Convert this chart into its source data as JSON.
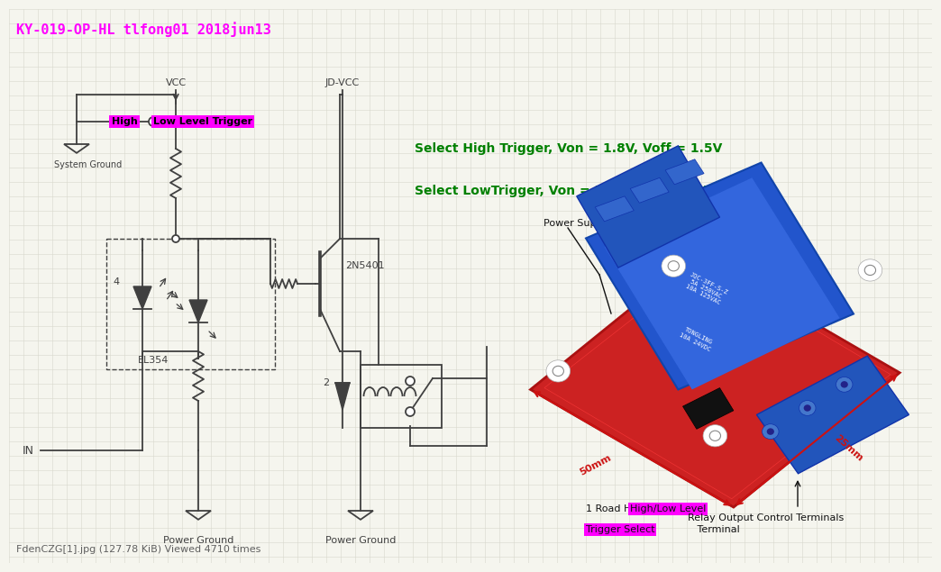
{
  "bg_color": "#f5f5ee",
  "grid_color": "#d8d8cc",
  "title": "KY-019-OP-HL tlfong01 2018jun13",
  "title_color": "#ff00ff",
  "title_fontsize": 11,
  "text_high_trigger": "Select High Trigger, Von = 1.8V, Voff = 1.5V",
  "text_low_trigger": "Select LowTrigger, Von = 3.2V, Voff = 3.5V",
  "trigger_color": "#008000",
  "trigger_fontsize": 10,
  "label_vcc": "VCC",
  "label_jdvcc": "JD-VCC",
  "label_power_ground1": "Power Ground",
  "label_power_ground2": "Power Ground",
  "label_system_ground": "System Ground",
  "label_in": "IN",
  "label_el354": "EL354",
  "label_2n5401": "2N5401",
  "label_high": "High",
  "label_low_level_trigger": "Low Level Trigger",
  "label_power_supply": "Power Supply And Signal Triggering End",
  "label_1road": "1 Road High/Low Level",
  "label_trigger_select": "Trigger Select Terminal",
  "label_relay_output": "Relay Output Control Terminals",
  "high_bg": "#ff00ff",
  "low_level_bg": "#ff00ff",
  "footer": "FdenCZG[1].jpg (127.78 KiB) Viewed 4710 times",
  "footer_color": "#606060",
  "footer_fontsize": 8,
  "lc": "#404040",
  "lw": 1.3,
  "relay_red": "#cc2222",
  "relay_blue": "#2255bb",
  "relay_blue_dark": "#1144aa",
  "relay_red_dim": "#cc1111"
}
